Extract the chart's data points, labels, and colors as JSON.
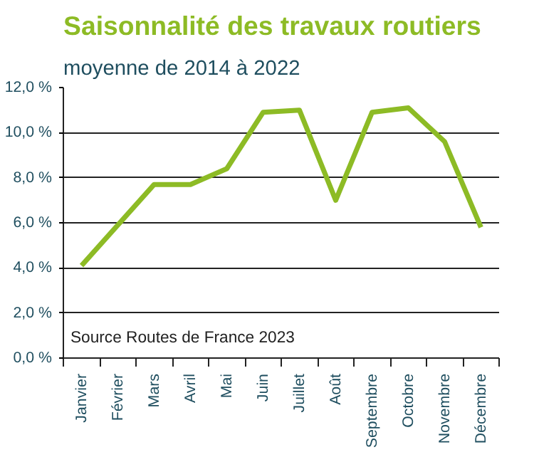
{
  "chart_data": {
    "type": "line",
    "title": "Saisonnalité des travaux routiers",
    "subtitle": "moyenne de 2014 à 2022",
    "categories": [
      "Janvier",
      "Février",
      "Mars",
      "Avril",
      "Mai",
      "Juin",
      "Juillet",
      "Août",
      "Septembre",
      "Octobre",
      "Novembre",
      "Décembre"
    ],
    "series": [
      {
        "color": "#8dbb25",
        "values": [
          4.1,
          5.9,
          7.7,
          7.7,
          8.4,
          10.9,
          11.0,
          7.0,
          10.9,
          11.1,
          9.6,
          5.8
        ]
      }
    ],
    "ylim": [
      0,
      12
    ],
    "yticks": [
      {
        "value": 0,
        "label": "0,0 %"
      },
      {
        "value": 2,
        "label": "2,0 %"
      },
      {
        "value": 4,
        "label": "4,0 %"
      },
      {
        "value": 6,
        "label": "6,0 %"
      },
      {
        "value": 8,
        "label": "8,0 %"
      },
      {
        "value": 10,
        "label": "10,0 %"
      },
      {
        "value": 12,
        "label": "12,0 %"
      }
    ],
    "grid": "y",
    "marker": "none",
    "line_style": "solid",
    "annotations": [
      "Source Routes de France 2023"
    ]
  }
}
